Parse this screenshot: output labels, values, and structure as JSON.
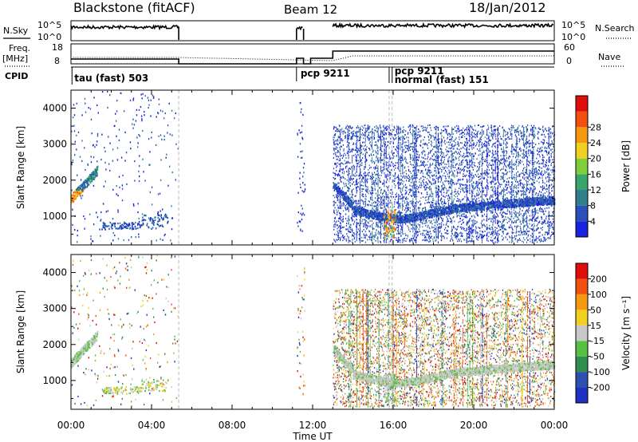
{
  "header": {
    "station": "Blackstone (fitACF)",
    "beam": "Beam 12",
    "date": "18/Jan/2012"
  },
  "left_labels": {
    "nsky": "N.Sky",
    "freq_top": "Freq.",
    "freq_bottom": "[MHz]",
    "cpid": "CPID"
  },
  "right_labels": {
    "nsearch": "N.Search",
    "nave": "Nave"
  },
  "noise_panel": {
    "ticks_left": [
      "10^5",
      "10^0"
    ],
    "ticks_right": [
      "10^5",
      "10^0"
    ]
  },
  "freq_panel": {
    "ticks_left": [
      "18",
      "8"
    ],
    "ticks_right": [
      "60",
      "0"
    ]
  },
  "cpid_labels": [
    {
      "text": "tau (fast) 503",
      "t": 0.05
    },
    {
      "text": "pcp 9211",
      "t": 11.4
    },
    {
      "text": "pcp 9211",
      "t": 15.9
    },
    {
      "text": "normal (fast) 151",
      "t": 15.9
    }
  ],
  "chart_data": [
    {
      "type": "heatmap",
      "name": "power",
      "ylabel": "Slant Range [km]",
      "xlabel": "Time UT",
      "xlim": [
        0,
        24
      ],
      "ylim": [
        200,
        4500
      ],
      "x_ticks": [
        "00:00",
        "04:00",
        "08:00",
        "12:00",
        "16:00",
        "20:00",
        "00:00"
      ],
      "x_tick_values": [
        0,
        4,
        8,
        12,
        16,
        20,
        24
      ],
      "y_ticks": [
        1000,
        2000,
        3000,
        4000
      ],
      "colorbar": {
        "label": "Power [dB]",
        "ticks": [
          "4",
          "8",
          "12",
          "16",
          "20",
          "24",
          "28"
        ],
        "colors": [
          "#1a22e0",
          "#2a4fb8",
          "#2f7f8e",
          "#3aa56a",
          "#7fcf3a",
          "#f0d020",
          "#f59a10",
          "#f05010",
          "#e00d0d"
        ]
      }
    },
    {
      "type": "heatmap",
      "name": "velocity",
      "ylabel": "Slant Range [km]",
      "xlabel": "Time UT",
      "xlim": [
        0,
        24
      ],
      "ylim": [
        200,
        4500
      ],
      "x_ticks": [
        "00:00",
        "04:00",
        "08:00",
        "12:00",
        "16:00",
        "20:00",
        "00:00"
      ],
      "x_tick_values": [
        0,
        4,
        8,
        12,
        16,
        20,
        24
      ],
      "y_ticks": [
        1000,
        2000,
        3000,
        4000
      ],
      "colorbar": {
        "label": "Velocity [m s⁻¹]",
        "ticks": [
          "200",
          "100",
          "50",
          "15",
          "-15",
          "-50",
          "-100",
          "-200"
        ],
        "colors": [
          "#2030c0",
          "#2f4fb0",
          "#2f8f4f",
          "#58c040",
          "#c8c8c8",
          "#f0d020",
          "#f59a10",
          "#f05010",
          "#e00d0d"
        ]
      }
    }
  ]
}
